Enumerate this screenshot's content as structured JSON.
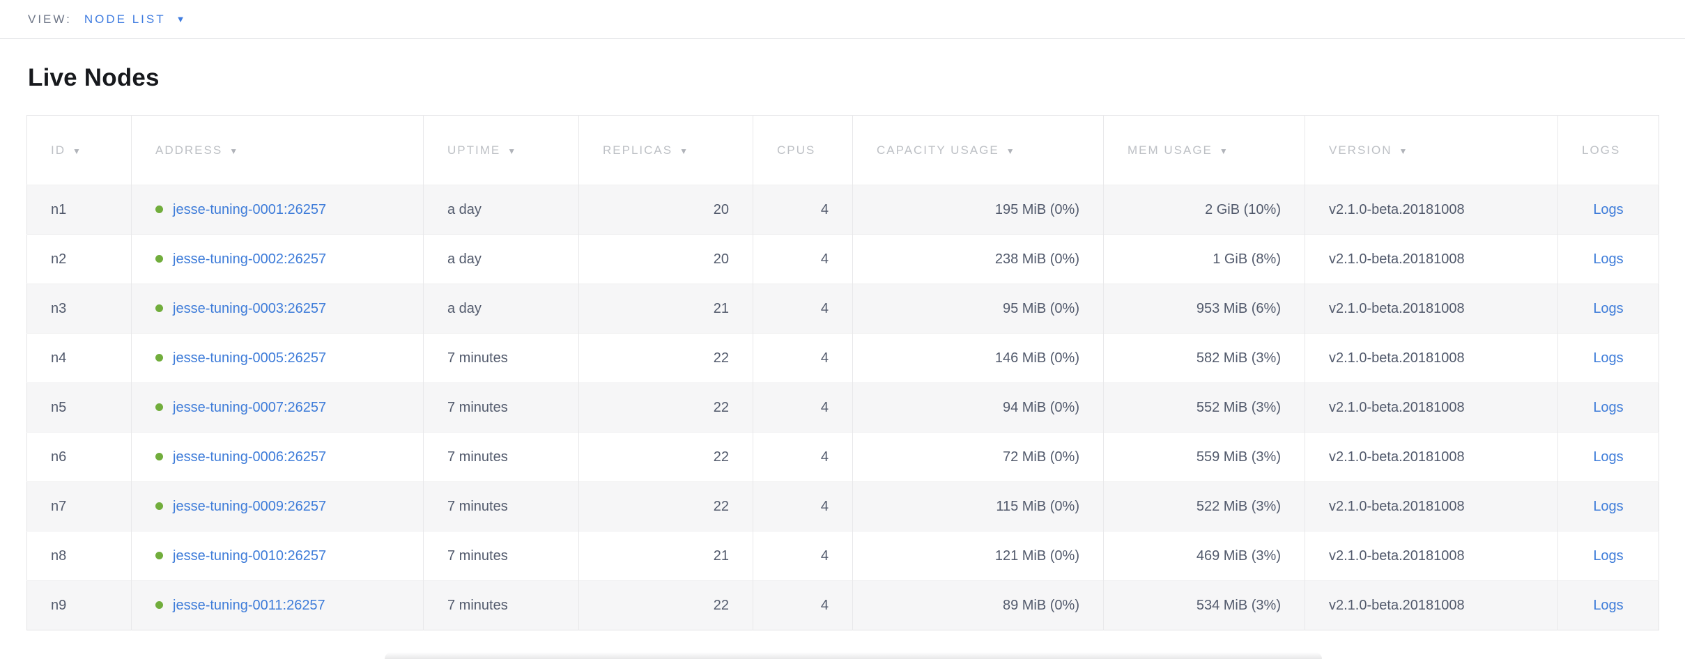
{
  "view_bar": {
    "label": "VIEW:",
    "selected": "NODE LIST",
    "caret": "▼"
  },
  "page": {
    "title": "Live Nodes"
  },
  "table": {
    "sort_arrow": "▼",
    "logs_label": "Logs",
    "columns": [
      {
        "key": "id",
        "label": "ID",
        "sorted": true,
        "align": "left"
      },
      {
        "key": "address",
        "label": "ADDRESS",
        "sorted": true,
        "align": "left"
      },
      {
        "key": "uptime",
        "label": "UPTIME",
        "sorted": true,
        "align": "left"
      },
      {
        "key": "replicas",
        "label": "REPLICAS",
        "sorted": true,
        "align": "right"
      },
      {
        "key": "cpus",
        "label": "CPUS",
        "sorted": false,
        "align": "right"
      },
      {
        "key": "capacity",
        "label": "CAPACITY USAGE",
        "sorted": true,
        "align": "right"
      },
      {
        "key": "mem",
        "label": "MEM USAGE",
        "sorted": true,
        "align": "right"
      },
      {
        "key": "version",
        "label": "VERSION",
        "sorted": true,
        "align": "left"
      },
      {
        "key": "logs",
        "label": "LOGS",
        "sorted": false,
        "align": "center"
      }
    ],
    "rows": [
      {
        "id": "n1",
        "address": "jesse-tuning-0001:26257",
        "uptime": "a day",
        "replicas": "20",
        "cpus": "4",
        "capacity": "195 MiB (0%)",
        "mem": "2 GiB (10%)",
        "version": "v2.1.0-beta.20181008"
      },
      {
        "id": "n2",
        "address": "jesse-tuning-0002:26257",
        "uptime": "a day",
        "replicas": "20",
        "cpus": "4",
        "capacity": "238 MiB (0%)",
        "mem": "1 GiB (8%)",
        "version": "v2.1.0-beta.20181008"
      },
      {
        "id": "n3",
        "address": "jesse-tuning-0003:26257",
        "uptime": "a day",
        "replicas": "21",
        "cpus": "4",
        "capacity": "95 MiB (0%)",
        "mem": "953 MiB (6%)",
        "version": "v2.1.0-beta.20181008"
      },
      {
        "id": "n4",
        "address": "jesse-tuning-0005:26257",
        "uptime": "7 minutes",
        "replicas": "22",
        "cpus": "4",
        "capacity": "146 MiB (0%)",
        "mem": "582 MiB (3%)",
        "version": "v2.1.0-beta.20181008"
      },
      {
        "id": "n5",
        "address": "jesse-tuning-0007:26257",
        "uptime": "7 minutes",
        "replicas": "22",
        "cpus": "4",
        "capacity": "94 MiB (0%)",
        "mem": "552 MiB (3%)",
        "version": "v2.1.0-beta.20181008"
      },
      {
        "id": "n6",
        "address": "jesse-tuning-0006:26257",
        "uptime": "7 minutes",
        "replicas": "22",
        "cpus": "4",
        "capacity": "72 MiB (0%)",
        "mem": "559 MiB (3%)",
        "version": "v2.1.0-beta.20181008"
      },
      {
        "id": "n7",
        "address": "jesse-tuning-0009:26257",
        "uptime": "7 minutes",
        "replicas": "22",
        "cpus": "4",
        "capacity": "115 MiB (0%)",
        "mem": "522 MiB (3%)",
        "version": "v2.1.0-beta.20181008"
      },
      {
        "id": "n8",
        "address": "jesse-tuning-0010:26257",
        "uptime": "7 minutes",
        "replicas": "21",
        "cpus": "4",
        "capacity": "121 MiB (0%)",
        "mem": "469 MiB (3%)",
        "version": "v2.1.0-beta.20181008"
      },
      {
        "id": "n9",
        "address": "jesse-tuning-0011:26257",
        "uptime": "7 minutes",
        "replicas": "22",
        "cpus": "4",
        "capacity": "89 MiB (0%)",
        "mem": "534 MiB (3%)",
        "version": "v2.1.0-beta.20181008"
      }
    ]
  },
  "colors": {
    "accent_blue": "#3f7ce0",
    "link_blue": "#3e7cd9",
    "node_live_green": "#71ad3c",
    "row_stripe": "#f6f6f7",
    "header_text": "#bdc0c5",
    "body_text": "#525a6c"
  }
}
